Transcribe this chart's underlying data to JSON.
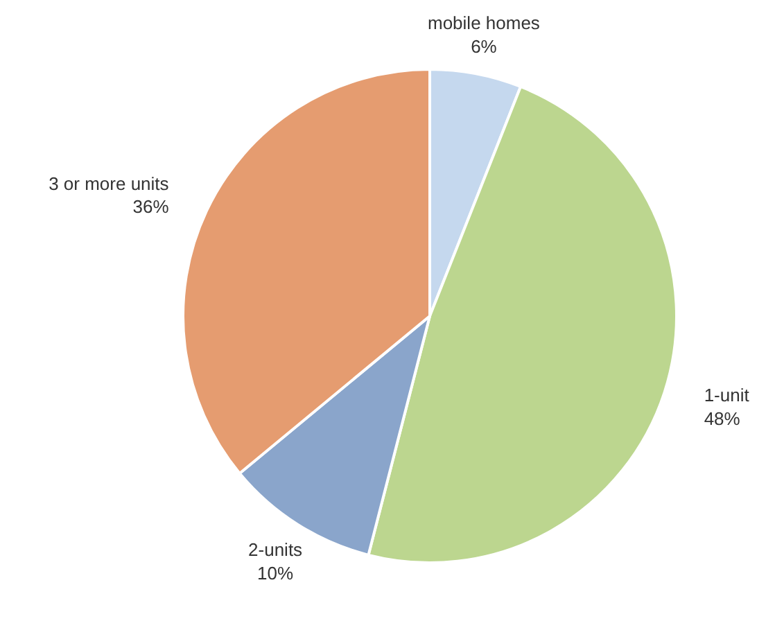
{
  "chart_data": {
    "type": "pie",
    "categories": [
      "mobile homes",
      "1-unit",
      "2-units",
      "3 or more units"
    ],
    "values": [
      6,
      48,
      10,
      36
    ],
    "colors": [
      "#c5d8ee",
      "#bcd68f",
      "#8aa5cb",
      "#e59c70"
    ],
    "value_labels": [
      "6%",
      "48%",
      "10%",
      "36%"
    ]
  }
}
